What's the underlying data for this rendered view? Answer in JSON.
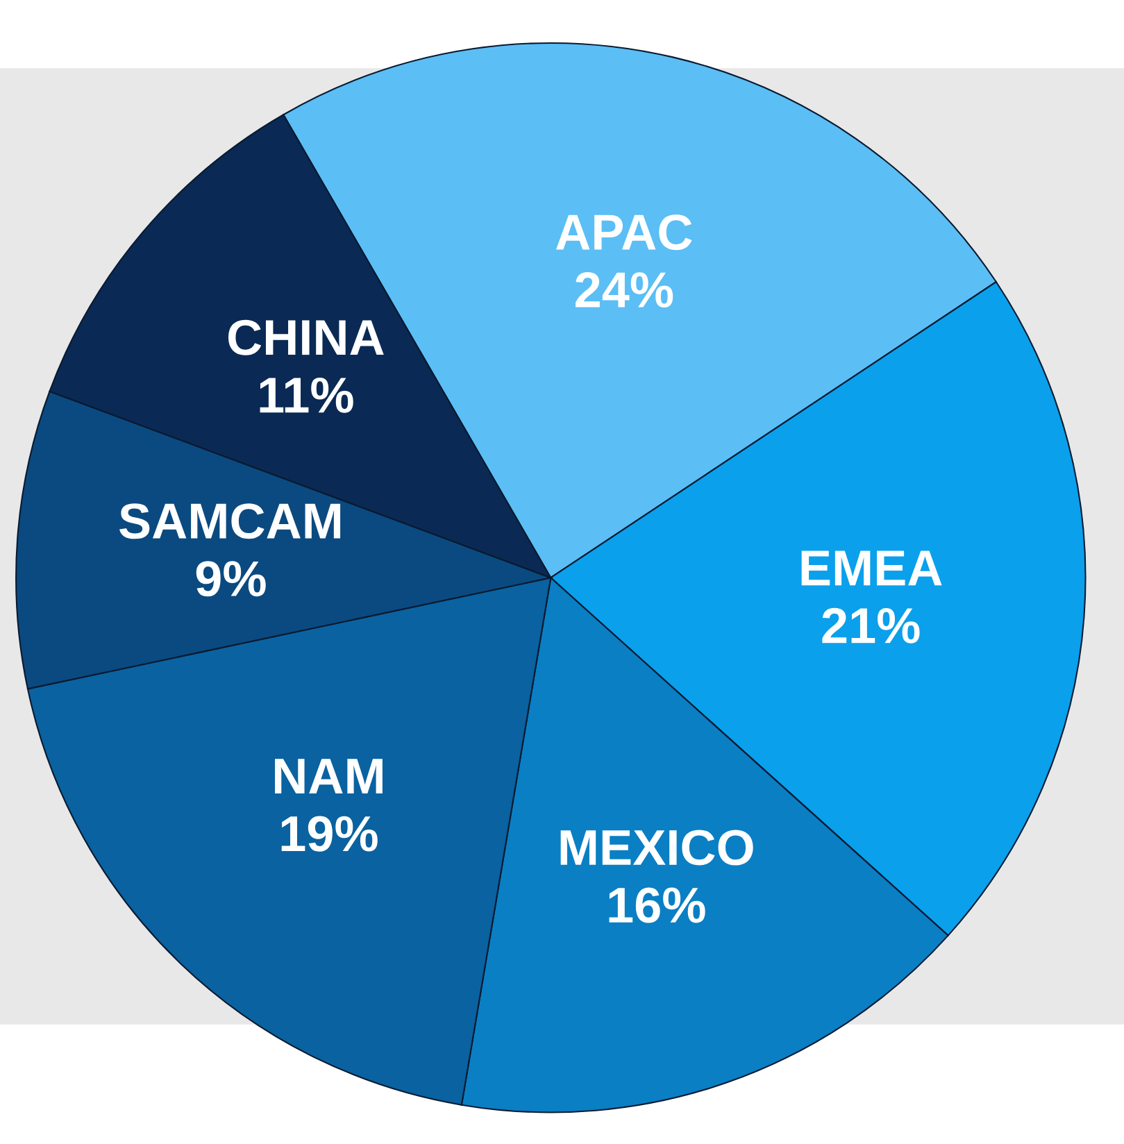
{
  "chart_data": {
    "type": "pie",
    "categories": [
      "APAC",
      "EMEA",
      "MEXICO",
      "NAM",
      "SAMCAM",
      "CHINA"
    ],
    "values": [
      24,
      21,
      16,
      19,
      9,
      11
    ],
    "value_labels": [
      "24%",
      "21%",
      "16%",
      "19%",
      "9%",
      "11%"
    ],
    "colors": [
      "#5bbef5",
      "#0aa0ec",
      "#0a7fc4",
      "#0a62a0",
      "#0a4a80",
      "#0a2a55"
    ],
    "legend": false
  }
}
